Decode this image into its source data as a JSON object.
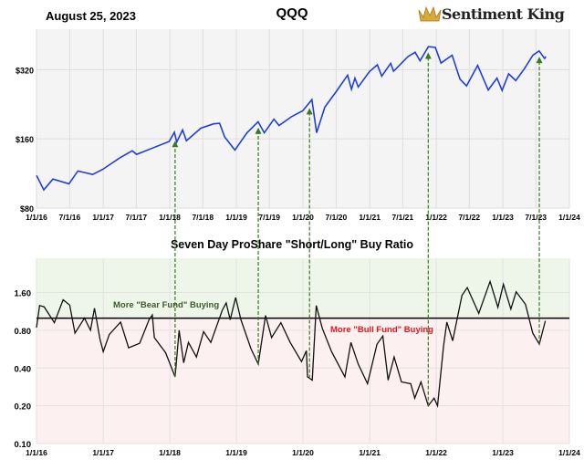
{
  "header": {
    "date": "August 25, 2023",
    "title": "QQQ",
    "logo_text": "Sentiment King",
    "logo_icon": "crown-icon"
  },
  "colors": {
    "price_line": "#1f3fd6",
    "ratio_line": "#111111",
    "arrows": "#3a7a1e",
    "bear_zone": "#eef6ea",
    "bull_zone": "#fdf0f0",
    "bear_label": "#3d5a2a",
    "bull_label": "#e8141c"
  },
  "chart_data": [
    {
      "type": "line",
      "title": "QQQ",
      "y_scale": "log",
      "ylim": [
        80,
        480
      ],
      "y_ticks": [
        80,
        160,
        320
      ],
      "y_tick_labels": [
        "$80",
        "$160",
        "$320"
      ],
      "x_ticks": [
        "2016-01-01",
        "2016-07-01",
        "2017-01-01",
        "2017-07-01",
        "2018-01-01",
        "2018-07-01",
        "2019-01-01",
        "2019-07-01",
        "2020-01-01",
        "2020-07-01",
        "2021-01-01",
        "2021-07-01",
        "2022-01-01",
        "2022-07-01",
        "2023-01-01",
        "2023-07-01",
        "2024-01-01"
      ],
      "x_tick_labels": [
        "1/1/16",
        "7/1/16",
        "1/1/17",
        "7/1/17",
        "1/1/18",
        "7/1/18",
        "1/1/19",
        "7/1/19",
        "1/1/20",
        "7/1/20",
        "1/1/21",
        "7/1/21",
        "1/1/22",
        "7/1/22",
        "1/1/23",
        "7/1/23",
        "1/1/24"
      ],
      "grid": true,
      "series": [
        {
          "points": [
            [
              "2016-01-01",
              111
            ],
            [
              "2016-02-10",
              96
            ],
            [
              "2016-03-31",
              107
            ],
            [
              "2016-06-27",
              102
            ],
            [
              "2016-08-15",
              116
            ],
            [
              "2016-11-04",
              112
            ],
            [
              "2016-12-30",
              118
            ],
            [
              "2017-03-31",
              132
            ],
            [
              "2017-06-09",
              142
            ],
            [
              "2017-07-03",
              137
            ],
            [
              "2017-09-29",
              146
            ],
            [
              "2017-12-29",
              156
            ],
            [
              "2018-01-26",
              171
            ],
            [
              "2018-02-08",
              155
            ],
            [
              "2018-03-12",
              175
            ],
            [
              "2018-04-02",
              157
            ],
            [
              "2018-06-20",
              178
            ],
            [
              "2018-08-29",
              186
            ],
            [
              "2018-10-01",
              187
            ],
            [
              "2018-10-29",
              163
            ],
            [
              "2018-12-24",
              143
            ],
            [
              "2019-02-28",
              170
            ],
            [
              "2019-04-30",
              190
            ],
            [
              "2019-06-03",
              170
            ],
            [
              "2019-07-26",
              195
            ],
            [
              "2019-08-23",
              183
            ],
            [
              "2019-10-31",
              200
            ],
            [
              "2019-12-31",
              212
            ],
            [
              "2020-02-19",
              237
            ],
            [
              "2020-03-16",
              170
            ],
            [
              "2020-04-30",
              220
            ],
            [
              "2020-06-30",
              256
            ],
            [
              "2020-09-02",
              303
            ],
            [
              "2020-09-23",
              263
            ],
            [
              "2020-10-12",
              294
            ],
            [
              "2020-10-30",
              269
            ],
            [
              "2020-12-31",
              314
            ],
            [
              "2021-02-12",
              336
            ],
            [
              "2021-03-08",
              300
            ],
            [
              "2021-04-26",
              341
            ],
            [
              "2021-05-12",
              315
            ],
            [
              "2021-07-30",
              365
            ],
            [
              "2021-09-07",
              381
            ],
            [
              "2021-10-04",
              350
            ],
            [
              "2021-11-19",
              403
            ],
            [
              "2021-12-27",
              400
            ],
            [
              "2022-01-27",
              342
            ],
            [
              "2022-03-29",
              370
            ],
            [
              "2022-05-11",
              291
            ],
            [
              "2022-06-16",
              272
            ],
            [
              "2022-08-16",
              334
            ],
            [
              "2022-10-13",
              261
            ],
            [
              "2022-11-30",
              294
            ],
            [
              "2022-12-28",
              260
            ],
            [
              "2023-02-02",
              307
            ],
            [
              "2023-03-13",
              287
            ],
            [
              "2023-04-28",
              322
            ],
            [
              "2023-06-15",
              370
            ],
            [
              "2023-07-19",
              386
            ],
            [
              "2023-08-18",
              358
            ],
            [
              "2023-08-25",
              365
            ]
          ]
        }
      ]
    },
    {
      "type": "line",
      "title": "Seven Day ProShare \"Short/Long\" Buy Ratio",
      "y_scale": "log",
      "ylim": [
        0.1,
        3.0
      ],
      "threshold": 1.0,
      "y_ticks": [
        0.1,
        0.2,
        0.4,
        0.8,
        1.6
      ],
      "y_tick_labels": [
        "0.10",
        "0.20",
        "0.40",
        "0.80",
        "1.60"
      ],
      "x_ticks": [
        "2016-01-01",
        "2017-01-01",
        "2018-01-01",
        "2019-01-01",
        "2020-01-01",
        "2021-01-01",
        "2022-01-01",
        "2023-01-01",
        "2024-01-01"
      ],
      "x_tick_labels": [
        "1/1/16",
        "1/1/17",
        "1/1/18",
        "1/1/19",
        "1/1/20",
        "1/1/21",
        "1/1/22",
        "1/1/23",
        "1/1/24"
      ],
      "grid": true,
      "annotations": {
        "bear": "More \"Bear Fund\" Buying",
        "bull": "More \"Bull Fund\" Buying"
      },
      "series": [
        {
          "points": [
            [
              "2016-01-01",
              0.84
            ],
            [
              "2016-01-18",
              1.26
            ],
            [
              "2016-02-12",
              1.23
            ],
            [
              "2016-04-08",
              0.92
            ],
            [
              "2016-05-26",
              1.4
            ],
            [
              "2016-07-01",
              1.27
            ],
            [
              "2016-07-30",
              0.76
            ],
            [
              "2016-09-20",
              1.0
            ],
            [
              "2016-10-23",
              0.8
            ],
            [
              "2016-11-14",
              1.2
            ],
            [
              "2016-12-14",
              0.68
            ],
            [
              "2017-01-01",
              0.54
            ],
            [
              "2017-02-03",
              0.74
            ],
            [
              "2017-04-06",
              0.93
            ],
            [
              "2017-05-20",
              0.58
            ],
            [
              "2017-07-20",
              0.63
            ],
            [
              "2017-09-09",
              0.97
            ],
            [
              "2017-09-27",
              1.06
            ],
            [
              "2017-10-08",
              0.7
            ],
            [
              "2017-12-09",
              0.53
            ],
            [
              "2018-01-30",
              0.34
            ],
            [
              "2018-02-21",
              0.8
            ],
            [
              "2018-03-18",
              0.44
            ],
            [
              "2018-04-13",
              0.64
            ],
            [
              "2018-05-27",
              0.49
            ],
            [
              "2018-07-05",
              0.78
            ],
            [
              "2018-08-14",
              0.64
            ],
            [
              "2018-10-15",
              1.15
            ],
            [
              "2018-11-06",
              1.32
            ],
            [
              "2018-11-28",
              0.97
            ],
            [
              "2018-12-28",
              1.46
            ],
            [
              "2019-01-26",
              0.97
            ],
            [
              "2019-03-22",
              0.57
            ],
            [
              "2019-05-01",
              0.43
            ],
            [
              "2019-06-10",
              1.05
            ],
            [
              "2019-07-13",
              0.7
            ],
            [
              "2019-09-02",
              0.92
            ],
            [
              "2019-10-23",
              0.64
            ],
            [
              "2019-12-24",
              0.45
            ],
            [
              "2020-01-20",
              0.55
            ],
            [
              "2020-01-26",
              0.34
            ],
            [
              "2020-02-21",
              0.32
            ],
            [
              "2020-03-14",
              1.26
            ],
            [
              "2020-04-16",
              0.83
            ],
            [
              "2020-06-06",
              0.54
            ],
            [
              "2020-08-18",
              0.34
            ],
            [
              "2020-09-20",
              0.64
            ],
            [
              "2020-10-30",
              0.43
            ],
            [
              "2020-12-20",
              0.3
            ],
            [
              "2021-02-10",
              0.62
            ],
            [
              "2021-03-14",
              0.72
            ],
            [
              "2021-04-12",
              0.32
            ],
            [
              "2021-05-15",
              0.49
            ],
            [
              "2021-06-24",
              0.31
            ],
            [
              "2021-08-14",
              0.3
            ],
            [
              "2021-09-05",
              0.23
            ],
            [
              "2021-10-09",
              0.31
            ],
            [
              "2021-11-18",
              0.2
            ],
            [
              "2021-12-20",
              0.23
            ],
            [
              "2022-01-08",
              0.2
            ],
            [
              "2022-02-10",
              0.6
            ],
            [
              "2022-02-28",
              0.93
            ],
            [
              "2022-04-01",
              0.66
            ],
            [
              "2022-05-22",
              1.52
            ],
            [
              "2022-06-20",
              1.75
            ],
            [
              "2022-08-22",
              1.09
            ],
            [
              "2022-10-23",
              1.96
            ],
            [
              "2022-12-05",
              1.22
            ],
            [
              "2023-01-04",
              1.86
            ],
            [
              "2023-02-14",
              1.18
            ],
            [
              "2023-03-15",
              1.62
            ],
            [
              "2023-05-05",
              1.29
            ],
            [
              "2023-06-14",
              0.76
            ],
            [
              "2023-07-20",
              0.62
            ],
            [
              "2023-08-22",
              0.95
            ]
          ]
        }
      ]
    }
  ],
  "arrow_dates": [
    "2018-01-30",
    "2019-05-01",
    "2020-02-06",
    "2021-11-18",
    "2023-07-20"
  ]
}
